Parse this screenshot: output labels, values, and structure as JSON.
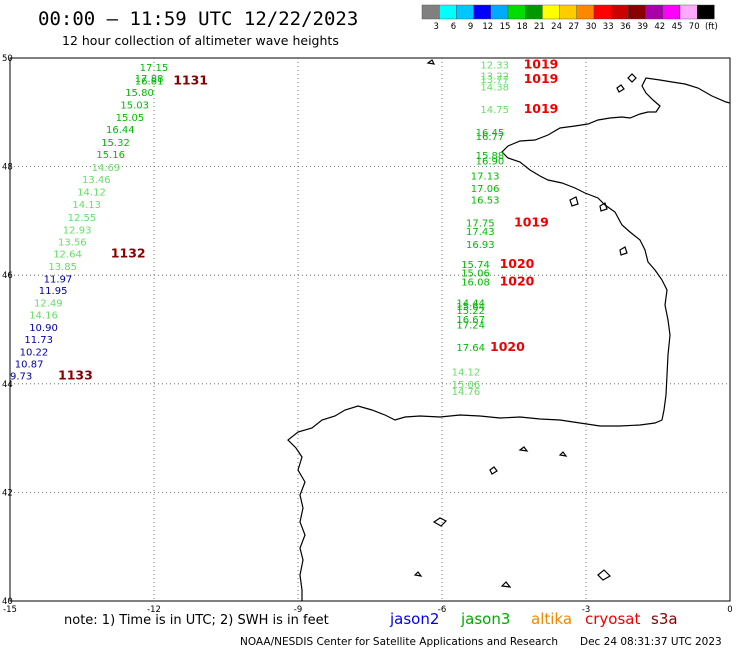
{
  "title": "00:00 – 11:59 UTC 12/22/2023",
  "subtitle": "12 hour collection of altimeter wave heights",
  "legend": {
    "colors": [
      "#808080",
      "#00ffff",
      "#00c8ff",
      "#0000ff",
      "#00aaff",
      "#00dd00",
      "#009900",
      "#ffff00",
      "#ffcc00",
      "#ff8800",
      "#ff0000",
      "#cc0000",
      "#880000",
      "#aa00aa",
      "#ff00ff",
      "#ffaaff",
      "#000000"
    ],
    "labels": [
      "3",
      "6",
      "9",
      "12",
      "15",
      "18",
      "21",
      "24",
      "27",
      "30",
      "33",
      "36",
      "39",
      "42",
      "45",
      "70",
      "(ft)"
    ]
  },
  "axes": {
    "lon_ticks": [
      -15,
      -12,
      -9,
      -6,
      -3,
      0
    ],
    "lon_labels": [
      "-15",
      "-12",
      "-9",
      "-6",
      "-3",
      "0"
    ],
    "lat_ticks": [
      50,
      48,
      46,
      44,
      42,
      40
    ],
    "lat_labels": [
      "50",
      "48",
      "46",
      "44",
      "42",
      "40"
    ],
    "lon_range": [
      -15,
      0
    ],
    "lat_range": [
      40,
      50
    ],
    "grid": true
  },
  "observations": [
    {
      "lon": -12.3,
      "lat": 49.76,
      "swh": "17.15",
      "color": "#00bb00"
    },
    {
      "lon": -12.4,
      "lat": 49.56,
      "swh": "17.88",
      "color": "#00bb00"
    },
    {
      "lon": -12.4,
      "lat": 49.51,
      "swh": "16.81",
      "color": "#00bb00"
    },
    {
      "lon": -12.6,
      "lat": 49.3,
      "swh": "15.80",
      "color": "#00bb00"
    },
    {
      "lon": -12.7,
      "lat": 49.07,
      "swh": "15.03",
      "color": "#00bb00"
    },
    {
      "lon": -12.8,
      "lat": 48.84,
      "swh": "15.05",
      "color": "#00bb00"
    },
    {
      "lon": -13.0,
      "lat": 48.62,
      "swh": "16.44",
      "color": "#00bb00"
    },
    {
      "lon": -13.1,
      "lat": 48.38,
      "swh": "15.32",
      "color": "#00bb00"
    },
    {
      "lon": -13.2,
      "lat": 48.16,
      "swh": "15.16",
      "color": "#00bb00"
    },
    {
      "lon": -13.3,
      "lat": 47.92,
      "swh": "14.69",
      "color": "#66dd66"
    },
    {
      "lon": -13.5,
      "lat": 47.7,
      "swh": "13.46",
      "color": "#66dd66"
    },
    {
      "lon": -13.6,
      "lat": 47.47,
      "swh": "14.12",
      "color": "#66dd66"
    },
    {
      "lon": -13.7,
      "lat": 47.24,
      "swh": "14.13",
      "color": "#66dd66"
    },
    {
      "lon": -13.8,
      "lat": 47.0,
      "swh": "12.55",
      "color": "#66dd66"
    },
    {
      "lon": -13.9,
      "lat": 46.77,
      "swh": "12.93",
      "color": "#66dd66"
    },
    {
      "lon": -14.0,
      "lat": 46.55,
      "swh": "13.56",
      "color": "#66dd66"
    },
    {
      "lon": -14.1,
      "lat": 46.33,
      "swh": "12.64",
      "color": "#66dd66"
    },
    {
      "lon": -14.2,
      "lat": 46.1,
      "swh": "13.85",
      "color": "#66dd66"
    },
    {
      "lon": -14.3,
      "lat": 45.87,
      "swh": "11.97",
      "color": "#0000aa"
    },
    {
      "lon": -14.4,
      "lat": 45.65,
      "swh": "11.95",
      "color": "#0000aa"
    },
    {
      "lon": -14.5,
      "lat": 45.42,
      "swh": "12.49",
      "color": "#66dd66"
    },
    {
      "lon": -14.6,
      "lat": 45.2,
      "swh": "14.16",
      "color": "#66dd66"
    },
    {
      "lon": -14.6,
      "lat": 44.97,
      "swh": "10.90",
      "color": "#0000aa"
    },
    {
      "lon": -14.7,
      "lat": 44.75,
      "swh": "11.73",
      "color": "#0000aa"
    },
    {
      "lon": -14.8,
      "lat": 44.52,
      "swh": "10.22",
      "color": "#0000aa"
    },
    {
      "lon": -14.9,
      "lat": 44.3,
      "swh": "10.87",
      "color": "#0000aa"
    },
    {
      "lon": -15.0,
      "lat": 44.08,
      "swh": "9.73",
      "color": "#0000aa"
    },
    {
      "lon": -5.2,
      "lat": 49.81,
      "swh": "12.33",
      "color": "#66dd66"
    },
    {
      "lon": -5.2,
      "lat": 49.6,
      "swh": "13.22",
      "color": "#66dd66"
    },
    {
      "lon": -5.2,
      "lat": 49.54,
      "swh": "13.77",
      "color": "#66dd66"
    },
    {
      "lon": -5.2,
      "lat": 49.4,
      "swh": "14.38",
      "color": "#66dd66"
    },
    {
      "lon": -5.2,
      "lat": 48.99,
      "swh": "14.75",
      "color": "#66dd66"
    },
    {
      "lon": -5.3,
      "lat": 48.56,
      "swh": "16.45",
      "color": "#00bb00"
    },
    {
      "lon": -5.3,
      "lat": 48.49,
      "swh": "16.77",
      "color": "#00bb00"
    },
    {
      "lon": -5.3,
      "lat": 48.14,
      "swh": "15.88",
      "color": "#00bb00"
    },
    {
      "lon": -5.3,
      "lat": 48.04,
      "swh": "16.90",
      "color": "#00bb00"
    },
    {
      "lon": -5.4,
      "lat": 47.76,
      "swh": "17.13",
      "color": "#00bb00"
    },
    {
      "lon": -5.4,
      "lat": 47.53,
      "swh": "17.06",
      "color": "#00bb00"
    },
    {
      "lon": -5.4,
      "lat": 47.32,
      "swh": "16.53",
      "color": "#00bb00"
    },
    {
      "lon": -5.5,
      "lat": 46.9,
      "swh": "17.75",
      "color": "#00bb00"
    },
    {
      "lon": -5.5,
      "lat": 46.74,
      "swh": "17.43",
      "color": "#00bb00"
    },
    {
      "lon": -5.5,
      "lat": 46.5,
      "swh": "16.93",
      "color": "#00bb00"
    },
    {
      "lon": -5.6,
      "lat": 46.13,
      "swh": "15.74",
      "color": "#00bb00"
    },
    {
      "lon": -5.6,
      "lat": 45.98,
      "swh": "15.06",
      "color": "#00bb00"
    },
    {
      "lon": -5.6,
      "lat": 45.81,
      "swh": "16.08",
      "color": "#00bb00"
    },
    {
      "lon": -5.7,
      "lat": 45.42,
      "swh": "14.44",
      "color": "#00bb00"
    },
    {
      "lon": -5.7,
      "lat": 45.36,
      "swh": "15.64",
      "color": "#00bb00"
    },
    {
      "lon": -5.7,
      "lat": 45.29,
      "swh": "15.22",
      "color": "#00bb00"
    },
    {
      "lon": -5.7,
      "lat": 45.12,
      "swh": "16.67",
      "color": "#00bb00"
    },
    {
      "lon": -5.7,
      "lat": 45.02,
      "swh": "17.24",
      "color": "#00bb00"
    },
    {
      "lon": -5.7,
      "lat": 44.6,
      "swh": "17.64",
      "color": "#00bb00"
    },
    {
      "lon": -5.8,
      "lat": 44.15,
      "swh": "14.12",
      "color": "#66dd66"
    },
    {
      "lon": -5.8,
      "lat": 43.92,
      "swh": "15.06",
      "color": "#66dd66"
    },
    {
      "lon": -5.8,
      "lat": 43.79,
      "swh": "14.76",
      "color": "#66dd66"
    }
  ],
  "pressures": [
    {
      "lon": -11.6,
      "lat": 49.51,
      "value": "1131",
      "color": "#880000"
    },
    {
      "lon": -12.9,
      "lat": 46.33,
      "value": "1132",
      "color": "#880000"
    },
    {
      "lon": -14.0,
      "lat": 44.08,
      "value": "1133",
      "color": "#880000"
    },
    {
      "lon": -4.3,
      "lat": 49.81,
      "value": "1019",
      "color": "#ee0000"
    },
    {
      "lon": -4.3,
      "lat": 49.54,
      "value": "1019",
      "color": "#ee0000"
    },
    {
      "lon": -4.3,
      "lat": 48.99,
      "value": "1019",
      "color": "#ee0000"
    },
    {
      "lon": -4.5,
      "lat": 46.9,
      "value": "1019",
      "color": "#ee0000"
    },
    {
      "lon": -4.8,
      "lat": 46.13,
      "value": "1020",
      "color": "#ee0000"
    },
    {
      "lon": -4.8,
      "lat": 45.81,
      "value": "1020",
      "color": "#ee0000"
    },
    {
      "lon": -5.0,
      "lat": 44.6,
      "value": "1020",
      "color": "#ee0000"
    }
  ],
  "note": "note:  1) Time is in UTC;  2) SWH is in feet",
  "satellites": [
    {
      "name": "jason2",
      "color": "#0000ee"
    },
    {
      "name": "jason3",
      "color": "#00aa00"
    },
    {
      "name": "altika",
      "color": "#ee8800"
    },
    {
      "name": "cryosat",
      "color": "#ee0000"
    },
    {
      "name": "s3a",
      "color": "#880000"
    }
  ],
  "footer_left": "NOAA/NESDIS Center for Satellite Applications and Research",
  "footer_right": "Dec 24 08:31:37 UTC 2023"
}
